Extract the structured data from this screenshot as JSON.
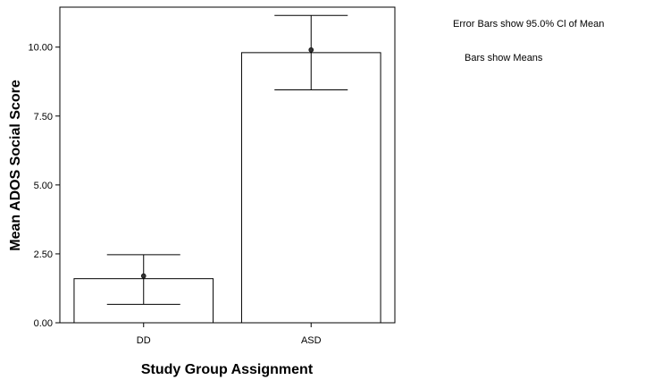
{
  "chart_data": {
    "type": "bar",
    "categories": [
      "DD",
      "ASD"
    ],
    "values": [
      1.6,
      9.8
    ],
    "point_estimates": [
      1.7,
      9.9
    ],
    "ci_lower": [
      0.67,
      8.45
    ],
    "ci_upper": [
      2.47,
      11.15
    ],
    "xlabel": "Study Group Assignment",
    "ylabel": "Mean ADOS Social Score",
    "ylim": [
      0,
      11.45
    ],
    "yticks": [
      0,
      2.5,
      5,
      7.5,
      10
    ],
    "ytick_labels": [
      "0.00",
      "2.50",
      "5.00",
      "7.50",
      "10.00"
    ],
    "grid": false,
    "bar_fill": "#ffffff",
    "bar_stroke": "#000000"
  },
  "notes": [
    "Error Bars show 95.0% Cl of Mean",
    "Bars show Means"
  ]
}
